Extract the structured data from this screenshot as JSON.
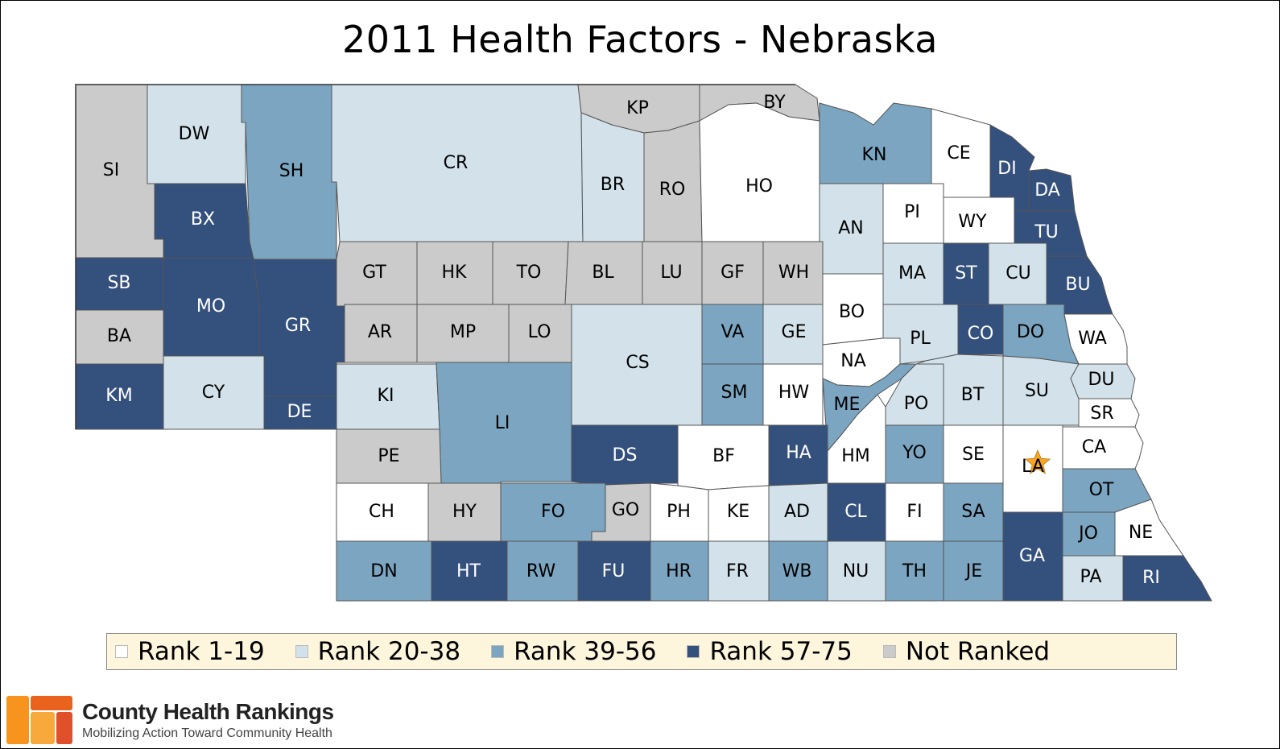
{
  "title": "2011 Health Factors - Nebraska",
  "colors": {
    "r1": "#ffffff",
    "r2": "#d3e2ea",
    "r3": "#7ba5c1",
    "r4": "#34507d",
    "nr": "#cbcbcb",
    "text_dark": "#000000",
    "text_light": "#ffffff",
    "star": "#f5a623"
  },
  "legend": [
    {
      "label": "Rank 1-19",
      "cat": "r1"
    },
    {
      "label": "Rank 20-38",
      "cat": "r2"
    },
    {
      "label": "Rank 39-56",
      "cat": "r3"
    },
    {
      "label": "Rank 57-75",
      "cat": "r4"
    },
    {
      "label": "Not Ranked",
      "cat": "nr"
    }
  ],
  "counties": [
    {
      "code": "SI",
      "cat": "nr"
    },
    {
      "code": "DW",
      "cat": "r2"
    },
    {
      "code": "SH",
      "cat": "r3"
    },
    {
      "code": "CR",
      "cat": "r2"
    },
    {
      "code": "KP",
      "cat": "nr"
    },
    {
      "code": "BY",
      "cat": "nr"
    },
    {
      "code": "BR",
      "cat": "r2"
    },
    {
      "code": "RO",
      "cat": "nr"
    },
    {
      "code": "HO",
      "cat": "r1"
    },
    {
      "code": "KN",
      "cat": "r3"
    },
    {
      "code": "CE",
      "cat": "r1"
    },
    {
      "code": "DI",
      "cat": "r4"
    },
    {
      "code": "DA",
      "cat": "r4"
    },
    {
      "code": "BX",
      "cat": "r4"
    },
    {
      "code": "AN",
      "cat": "r2"
    },
    {
      "code": "PI",
      "cat": "r1"
    },
    {
      "code": "WY",
      "cat": "r1"
    },
    {
      "code": "TU",
      "cat": "r4"
    },
    {
      "code": "SB",
      "cat": "r4"
    },
    {
      "code": "MO",
      "cat": "r4"
    },
    {
      "code": "GR",
      "cat": "r4"
    },
    {
      "code": "GT",
      "cat": "nr"
    },
    {
      "code": "HK",
      "cat": "nr"
    },
    {
      "code": "TO",
      "cat": "nr"
    },
    {
      "code": "BL",
      "cat": "nr"
    },
    {
      "code": "LU",
      "cat": "nr"
    },
    {
      "code": "GF",
      "cat": "nr"
    },
    {
      "code": "WH",
      "cat": "nr"
    },
    {
      "code": "MA",
      "cat": "r2"
    },
    {
      "code": "ST",
      "cat": "r4"
    },
    {
      "code": "CU",
      "cat": "r2"
    },
    {
      "code": "BU",
      "cat": "r4"
    },
    {
      "code": "BA",
      "cat": "nr"
    },
    {
      "code": "AR",
      "cat": "nr"
    },
    {
      "code": "MP",
      "cat": "nr"
    },
    {
      "code": "LO",
      "cat": "nr"
    },
    {
      "code": "BO",
      "cat": "r1"
    },
    {
      "code": "VA",
      "cat": "r3"
    },
    {
      "code": "GE",
      "cat": "r2"
    },
    {
      "code": "PL",
      "cat": "r2"
    },
    {
      "code": "CO",
      "cat": "r4"
    },
    {
      "code": "DO",
      "cat": "r3"
    },
    {
      "code": "WA",
      "cat": "r1"
    },
    {
      "code": "CS",
      "cat": "r2"
    },
    {
      "code": "NA",
      "cat": "r1"
    },
    {
      "code": "KM",
      "cat": "r4"
    },
    {
      "code": "CY",
      "cat": "r2"
    },
    {
      "code": "KI",
      "cat": "r2"
    },
    {
      "code": "LI",
      "cat": "r3"
    },
    {
      "code": "SM",
      "cat": "r3"
    },
    {
      "code": "HW",
      "cat": "r1"
    },
    {
      "code": "ME",
      "cat": "r3"
    },
    {
      "code": "PO",
      "cat": "r2"
    },
    {
      "code": "BT",
      "cat": "r2"
    },
    {
      "code": "SU",
      "cat": "r2"
    },
    {
      "code": "DU",
      "cat": "r2"
    },
    {
      "code": "DE",
      "cat": "r4"
    },
    {
      "code": "SR",
      "cat": "r1"
    },
    {
      "code": "PE",
      "cat": "nr"
    },
    {
      "code": "DS",
      "cat": "r4"
    },
    {
      "code": "BF",
      "cat": "r1"
    },
    {
      "code": "HA",
      "cat": "r4"
    },
    {
      "code": "HM",
      "cat": "r1"
    },
    {
      "code": "YO",
      "cat": "r3"
    },
    {
      "code": "SE",
      "cat": "r1"
    },
    {
      "code": "LA",
      "cat": "r1"
    },
    {
      "code": "CA",
      "cat": "r1"
    },
    {
      "code": "OT",
      "cat": "r3"
    },
    {
      "code": "CH",
      "cat": "r1"
    },
    {
      "code": "HY",
      "cat": "nr"
    },
    {
      "code": "FO",
      "cat": "r3"
    },
    {
      "code": "GO",
      "cat": "nr"
    },
    {
      "code": "PH",
      "cat": "r1"
    },
    {
      "code": "KE",
      "cat": "r1"
    },
    {
      "code": "AD",
      "cat": "r2"
    },
    {
      "code": "CL",
      "cat": "r4"
    },
    {
      "code": "FI",
      "cat": "r1"
    },
    {
      "code": "SA",
      "cat": "r3"
    },
    {
      "code": "JO",
      "cat": "r3"
    },
    {
      "code": "NE",
      "cat": "r1"
    },
    {
      "code": "GA",
      "cat": "r4"
    },
    {
      "code": "DN",
      "cat": "r3"
    },
    {
      "code": "HT",
      "cat": "r4"
    },
    {
      "code": "RW",
      "cat": "r3"
    },
    {
      "code": "FU",
      "cat": "r4"
    },
    {
      "code": "HR",
      "cat": "r3"
    },
    {
      "code": "FR",
      "cat": "r2"
    },
    {
      "code": "WB",
      "cat": "r3"
    },
    {
      "code": "NU",
      "cat": "r2"
    },
    {
      "code": "TH",
      "cat": "r3"
    },
    {
      "code": "JE",
      "cat": "r3"
    },
    {
      "code": "PA",
      "cat": "r2"
    },
    {
      "code": "RI",
      "cat": "r4"
    }
  ],
  "star_icon": "star-icon",
  "logo": {
    "icon": "county-health-rankings-logo-icon",
    "name": "County Health Rankings",
    "tagline": "Mobilizing Action Toward Community Health"
  }
}
